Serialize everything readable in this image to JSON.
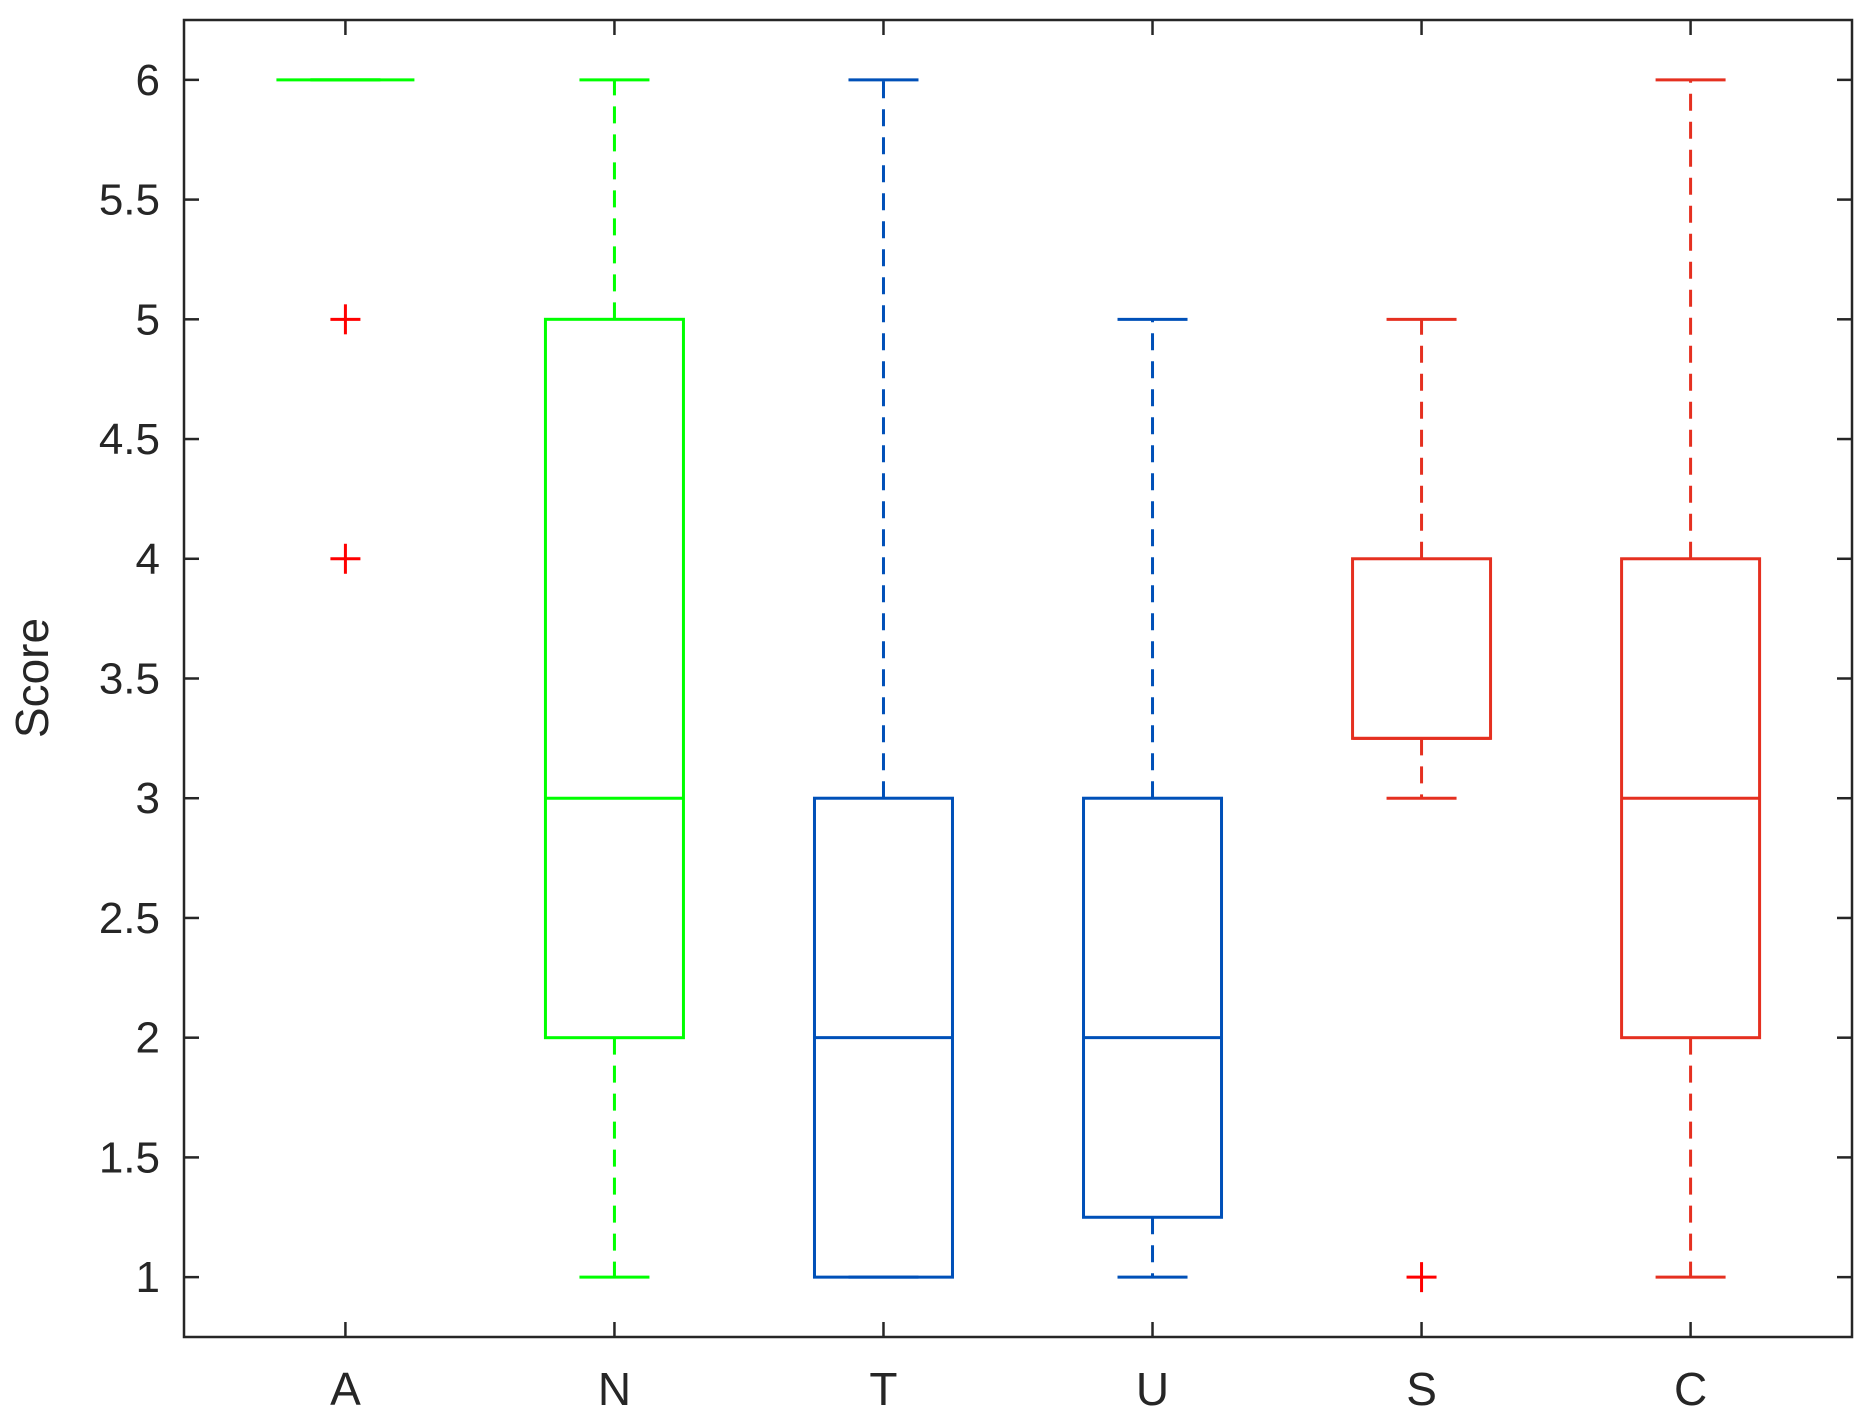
{
  "chart_data": {
    "type": "box",
    "title": "",
    "xlabel": "",
    "ylabel": "Score",
    "ylim": [
      0.75,
      6.25
    ],
    "y_ticks": [
      "1",
      "1.5",
      "2",
      "2.5",
      "3",
      "3.5",
      "4",
      "4.5",
      "5",
      "5.5",
      "6"
    ],
    "grid": false,
    "categories": [
      "A",
      "N",
      "T",
      "U",
      "S",
      "C"
    ],
    "boxes": [
      {
        "category": "A",
        "whisker_low": 6,
        "q1": 6,
        "median": 6,
        "q3": 6,
        "whisker_high": 6,
        "outliers": [
          5,
          4
        ],
        "color": "#00ff00"
      },
      {
        "category": "N",
        "whisker_low": 1,
        "q1": 2,
        "median": 3,
        "q3": 5,
        "whisker_high": 6,
        "outliers": [],
        "color": "#00ff00"
      },
      {
        "category": "T",
        "whisker_low": 1,
        "q1": 1,
        "median": 2,
        "q3": 3,
        "whisker_high": 6,
        "outliers": [],
        "color": "#0050b8"
      },
      {
        "category": "U",
        "whisker_low": 1,
        "q1": 1.25,
        "median": 2,
        "q3": 3,
        "whisker_high": 5,
        "outliers": [],
        "color": "#0050b8"
      },
      {
        "category": "S",
        "whisker_low": 3,
        "q1": 3.25,
        "median": 3.25,
        "q3": 4,
        "whisker_high": 5,
        "outliers": [
          1
        ],
        "color": "#e53020"
      },
      {
        "category": "C",
        "whisker_low": 1,
        "q1": 2,
        "median": 3,
        "q3": 4,
        "whisker_high": 6,
        "outliers": [],
        "color": "#e53020"
      }
    ],
    "outlier_color": "#ff0000",
    "outlier_marker": "+"
  }
}
